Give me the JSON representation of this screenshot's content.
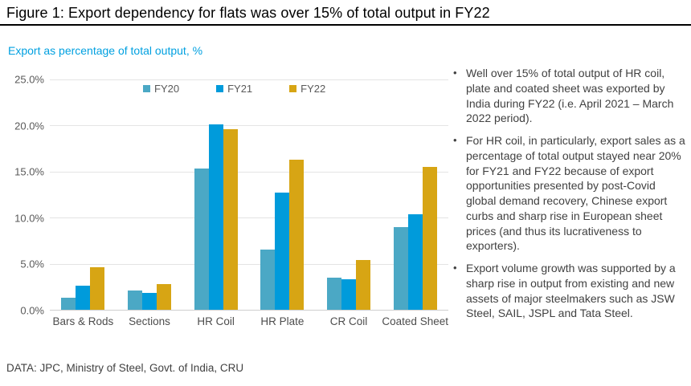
{
  "header": {
    "title": "Figure 1: Export dependency for flats was over 15% of total output in FY22"
  },
  "chart_data": {
    "type": "bar",
    "title": "Export as percentage of total output, %",
    "categories": [
      "Bars & Rods",
      "Sections",
      "HR Coil",
      "HR Plate",
      "CR Coil",
      "Coated Sheet"
    ],
    "series": [
      {
        "name": "FY20",
        "color": "#4BA8C5",
        "values": [
          1.3,
          2.1,
          15.3,
          6.5,
          3.5,
          9.0
        ]
      },
      {
        "name": "FY21",
        "color": "#009BDB",
        "values": [
          2.6,
          1.8,
          20.1,
          12.7,
          3.3,
          10.4
        ]
      },
      {
        "name": "FY22",
        "color": "#D7A514",
        "values": [
          4.6,
          2.8,
          19.6,
          16.3,
          5.4,
          15.5
        ]
      }
    ],
    "ylim": [
      0,
      25
    ],
    "y_ticks": [
      {
        "value": 25,
        "label": "25.0%"
      },
      {
        "value": 20,
        "label": "20.0%"
      },
      {
        "value": 15,
        "label": "15.0%"
      },
      {
        "value": 10,
        "label": "10.0%"
      },
      {
        "value": 5,
        "label": "5.0%"
      },
      {
        "value": 0,
        "label": "0.0%"
      }
    ],
    "grid": "horizontal",
    "legend_position": "top-inside"
  },
  "insights": {
    "bullets": [
      "Well over 15% of total output of HR coil, plate and coated sheet was exported by India during FY22 (i.e. April 2021 – March 2022 period).",
      "For HR coil, in particularly, export sales as a percentage of total output stayed near 20% for FY21 and FY22 because of export opportunities presented by post-Covid global demand recovery, Chinese export curbs and sharp rise in European sheet prices (and thus its lucrativeness to exporters).",
      "Export volume growth was supported by a sharp rise in output from existing and new assets of major steelmakers such as JSW Steel, SAIL, JSPL and Tata Steel."
    ]
  },
  "footer": {
    "source": "DATA: JPC, Ministry of Steel, Govt. of India, CRU"
  },
  "colors": {
    "subtitle": "#00A0E0",
    "title_rule": "#000000",
    "gridline": "#E4E4E4",
    "axis_text": "#595959",
    "body_text": "#414141"
  }
}
